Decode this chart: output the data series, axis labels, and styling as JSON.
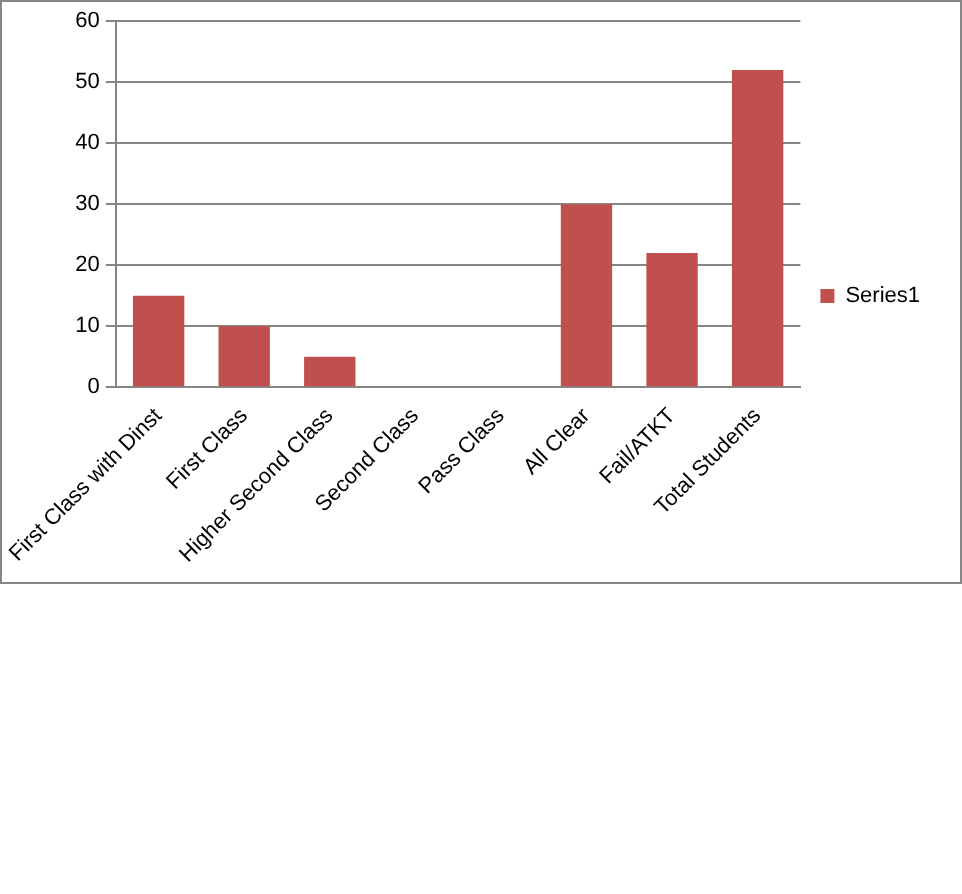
{
  "chart_data": {
    "type": "bar",
    "categories": [
      "First Class with Dinst",
      "First Class",
      "Higher Second Class",
      "Second Class",
      "Pass Class",
      "All Clear",
      "Fail/ATKT",
      "Total Students"
    ],
    "series": [
      {
        "name": "Series1",
        "color": "#c0504d",
        "values": [
          15,
          10,
          5,
          0,
          0,
          30,
          22,
          52
        ]
      }
    ],
    "ylim": [
      0,
      60
    ],
    "yticks": [
      0,
      10,
      20,
      30,
      40,
      50,
      60
    ],
    "grid": "y",
    "legend": "right"
  }
}
